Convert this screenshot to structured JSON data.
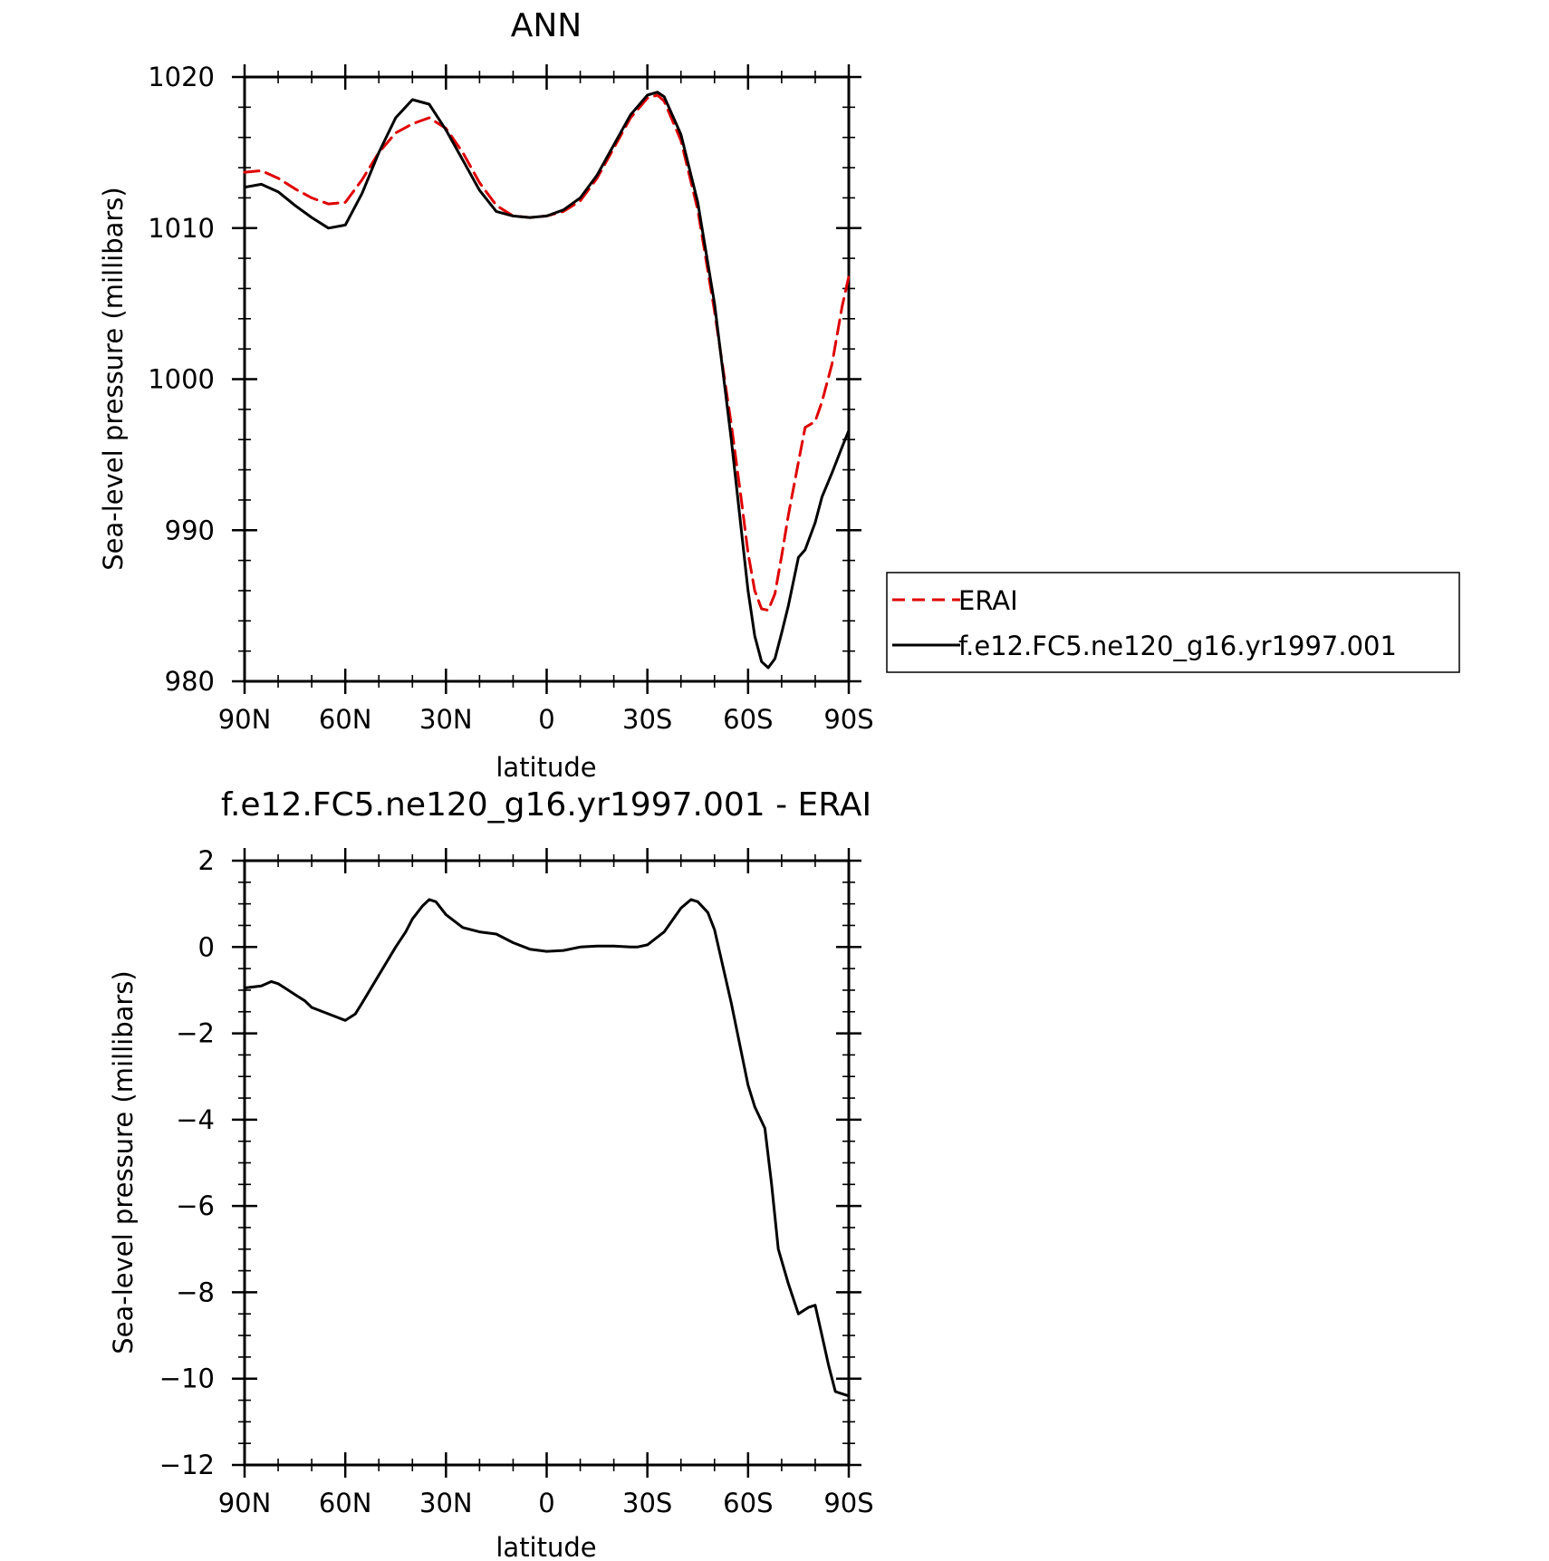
{
  "chart_data": [
    {
      "type": "line",
      "title": "ANN",
      "xlabel": "latitude",
      "ylabel": "Sea-level pressure (millibars)",
      "xlim": [
        90,
        -90
      ],
      "ylim": [
        980,
        1020
      ],
      "x_ticks": [
        90,
        60,
        30,
        0,
        -30,
        -60,
        -90
      ],
      "x_tick_labels": [
        "90N",
        "60N",
        "30N",
        "0",
        "30S",
        "60S",
        "90S"
      ],
      "y_ticks": [
        980,
        990,
        1000,
        1010,
        1020
      ],
      "y_tick_labels": [
        "980",
        "990",
        "1000",
        "1010",
        "1020"
      ],
      "grid": false,
      "legend": "right",
      "series": [
        {
          "name": "ERAI",
          "color": "#e00000",
          "dash": "dashed",
          "x": [
            90,
            85,
            80,
            75,
            70,
            65,
            60,
            55,
            50,
            45,
            40,
            35,
            30,
            25,
            20,
            15,
            10,
            5,
            0,
            -5,
            -10,
            -15,
            -20,
            -25,
            -30,
            -33,
            -35,
            -40,
            -45,
            -50,
            -55,
            -58,
            -60,
            -62,
            -64,
            -66,
            -68,
            -70,
            -72,
            -75,
            -77,
            -80,
            -82,
            -85,
            -88,
            -90
          ],
          "y": [
            1013.7,
            1013.8,
            1013.3,
            1012.6,
            1012.0,
            1011.6,
            1011.7,
            1013.2,
            1015.0,
            1016.3,
            1016.9,
            1017.3,
            1016.6,
            1015.0,
            1013.0,
            1011.5,
            1010.8,
            1010.7,
            1010.8,
            1011.1,
            1011.8,
            1013.3,
            1015.3,
            1017.3,
            1018.6,
            1018.8,
            1018.4,
            1015.8,
            1011.2,
            1004.5,
            997.0,
            992.0,
            988.5,
            986.0,
            984.8,
            984.7,
            985.8,
            988.3,
            991.0,
            994.5,
            996.8,
            997.2,
            998.5,
            1001.0,
            1004.8,
            1006.8
          ]
        },
        {
          "name": "f.e12.FC5.ne120_g16.yr1997.001",
          "color": "#000000",
          "dash": "solid",
          "x": [
            90,
            85,
            80,
            75,
            70,
            65,
            60,
            55,
            50,
            45,
            40,
            35,
            30,
            25,
            20,
            15,
            10,
            5,
            0,
            -5,
            -10,
            -15,
            -20,
            -25,
            -30,
            -33,
            -35,
            -40,
            -45,
            -50,
            -55,
            -58,
            -60,
            -62,
            -64,
            -66,
            -68,
            -70,
            -72,
            -75,
            -77,
            -80,
            -82,
            -85,
            -88,
            -90
          ],
          "y": [
            1012.7,
            1012.9,
            1012.4,
            1011.5,
            1010.7,
            1010.0,
            1010.2,
            1012.3,
            1015.0,
            1017.3,
            1018.5,
            1018.2,
            1016.5,
            1014.5,
            1012.5,
            1011.1,
            1010.8,
            1010.7,
            1010.8,
            1011.2,
            1012.0,
            1013.5,
            1015.5,
            1017.5,
            1018.8,
            1019.0,
            1018.7,
            1016.2,
            1011.7,
            1005.0,
            996.0,
            990.0,
            986.0,
            983.0,
            981.3,
            980.9,
            981.5,
            983.2,
            985.0,
            988.2,
            988.7,
            990.5,
            992.2,
            993.8,
            995.5,
            996.6
          ]
        }
      ]
    },
    {
      "type": "line",
      "title": "f.e12.FC5.ne120_g16.yr1997.001 - ERAI",
      "xlabel": "latitude",
      "ylabel": "Sea-level pressure (millibars)",
      "xlim": [
        90,
        -90
      ],
      "ylim": [
        -12,
        2
      ],
      "x_ticks": [
        90,
        60,
        30,
        0,
        -30,
        -60,
        -90
      ],
      "x_tick_labels": [
        "90N",
        "60N",
        "30N",
        "0",
        "30S",
        "60S",
        "90S"
      ],
      "y_ticks": [
        -12,
        -10,
        -8,
        -6,
        -4,
        -2,
        0,
        2
      ],
      "y_tick_labels": [
        "−12",
        "−10",
        "−8",
        "−6",
        "−4",
        "−2",
        "0",
        "2"
      ],
      "grid": false,
      "series": [
        {
          "color": "#000000",
          "dash": "solid",
          "x": [
            90,
            85,
            82,
            80,
            78,
            75,
            72,
            70,
            65,
            60,
            57,
            55,
            50,
            45,
            42,
            40,
            37,
            35,
            33,
            30,
            25,
            20,
            15,
            10,
            5,
            0,
            -5,
            -10,
            -15,
            -20,
            -25,
            -27,
            -30,
            -35,
            -40,
            -43,
            -45,
            -48,
            -50,
            -55,
            -60,
            -62,
            -65,
            -67,
            -69,
            -72,
            -75,
            -78,
            -80,
            -82,
            -84,
            -86,
            -88,
            -90
          ],
          "y": [
            -0.95,
            -0.9,
            -0.8,
            -0.85,
            -0.95,
            -1.1,
            -1.25,
            -1.4,
            -1.55,
            -1.7,
            -1.55,
            -1.3,
            -0.65,
            0.0,
            0.35,
            0.65,
            0.95,
            1.1,
            1.05,
            0.75,
            0.45,
            0.35,
            0.3,
            0.1,
            -0.05,
            -0.1,
            -0.08,
            0.0,
            0.02,
            0.02,
            0.0,
            0.0,
            0.05,
            0.35,
            0.9,
            1.1,
            1.05,
            0.8,
            0.4,
            -1.3,
            -3.2,
            -3.7,
            -4.2,
            -5.5,
            -7.0,
            -7.8,
            -8.5,
            -8.35,
            -8.3,
            -9.0,
            -9.7,
            -10.3,
            -10.35,
            -10.4
          ]
        }
      ]
    }
  ]
}
